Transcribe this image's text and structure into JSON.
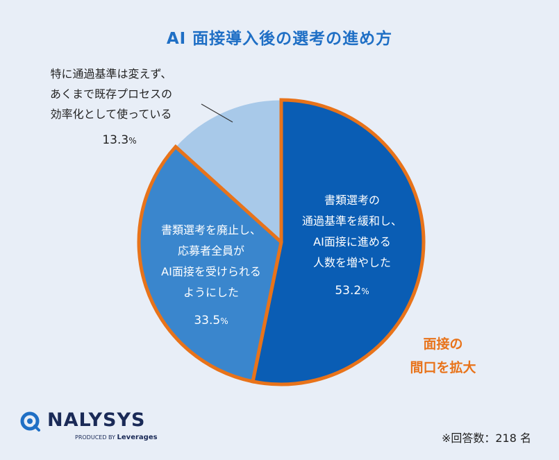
{
  "title": "AI 面接導入後の選考の進め方",
  "chart_data": {
    "type": "pie",
    "categories": [
      "書類選考の通過基準を緩和し、AI面接に進める人数を増やした",
      "書類選考を廃止し、応募者全員がAI面接を受けられるようにした",
      "特に通過基準は変えず、あくまで既存プロセスの効率化として使っている"
    ],
    "values": [
      53.2,
      33.5,
      13.3
    ],
    "colors": [
      "#0a5db4",
      "#3a86cd",
      "#a8c9e9"
    ],
    "highlight_color": "#e8731a",
    "labels": [
      {
        "lines": [
          "書類選考の",
          "通過基準を緩和し、",
          "AI面接に進める",
          "人数を増やした"
        ],
        "value": "53.2",
        "unit": "%"
      },
      {
        "lines": [
          "書類選考を廃止し、",
          "応募者全員が",
          "AI面接を受けられる",
          "ようにした"
        ],
        "value": "33.5",
        "unit": "%"
      },
      {
        "lines": [
          "特に通過基準は変えず、",
          "あくまで既存プロセスの",
          "効率化として使っている"
        ],
        "value": "13.3",
        "unit": "%"
      }
    ],
    "annotation": [
      "面接の",
      "間口を拡大"
    ]
  },
  "logo": {
    "brand": "NALYSYS",
    "produced_by": "PRODUCED BY",
    "company": "Leverages"
  },
  "note": "※回答数：218 名"
}
